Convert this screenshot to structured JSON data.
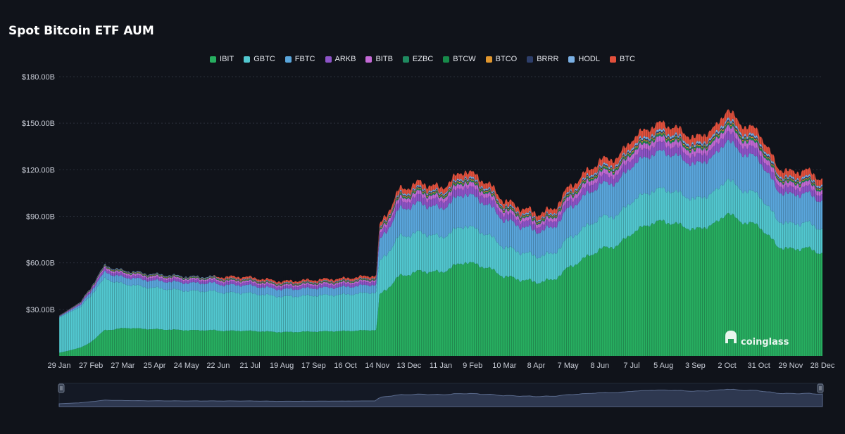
{
  "page": {
    "title": "Spot Bitcoin ETF AUM"
  },
  "watermark": "coinglass",
  "colors": {
    "background": "#10131a",
    "grid": "#2a2f3a",
    "axis_text": "#c8ccd6",
    "navigator_fill": "#2e3850",
    "navigator_line": "#5a6a8c"
  },
  "chart_data": {
    "type": "area",
    "stacked": true,
    "title": "Spot Bitcoin ETF AUM",
    "ylabel": "",
    "ylim": [
      0,
      180
    ],
    "y_unit": "billion USD",
    "yticks": [
      30,
      60,
      90,
      120,
      150,
      180
    ],
    "ytick_labels": [
      "$30.00B",
      "$60.00B",
      "$90.00B",
      "$120.00B",
      "$150.00B",
      "$180.00B"
    ],
    "grid": true,
    "legend_position": "top-center",
    "xtick_labels": [
      "29 Jan",
      "27 Feb",
      "27 Mar",
      "25 Apr",
      "24 May",
      "22 Jun",
      "21 Jul",
      "19 Aug",
      "17 Sep",
      "16 Oct",
      "14 Nov",
      "13 Dec",
      "11 Jan",
      "9 Feb",
      "10 Mar",
      "8 Apr",
      "7 May",
      "8 Jun",
      "7 Jul",
      "5 Aug",
      "3 Sep",
      "2 Oct",
      "31 Oct",
      "29 Nov",
      "28 Dec"
    ],
    "x_index": [
      0,
      29,
      58,
      87,
      116,
      145,
      174,
      203,
      232,
      261,
      290,
      319,
      348,
      377,
      406,
      435,
      464,
      493,
      522,
      551,
      580,
      609,
      638,
      667,
      696
    ],
    "total_key_points": [
      [
        0,
        26
      ],
      [
        20,
        35
      ],
      [
        35,
        51
      ],
      [
        42,
        59
      ],
      [
        50,
        56
      ],
      [
        80,
        53
      ],
      [
        120,
        51
      ],
      [
        170,
        51
      ],
      [
        203,
        48
      ],
      [
        230,
        49
      ],
      [
        261,
        50
      ],
      [
        289,
        52
      ],
      [
        292,
        83
      ],
      [
        310,
        107
      ],
      [
        330,
        112
      ],
      [
        348,
        108
      ],
      [
        370,
        120
      ],
      [
        390,
        112
      ],
      [
        406,
        100
      ],
      [
        420,
        96
      ],
      [
        435,
        92
      ],
      [
        450,
        94
      ],
      [
        464,
        108
      ],
      [
        480,
        118
      ],
      [
        493,
        126
      ],
      [
        510,
        128
      ],
      [
        522,
        140
      ],
      [
        540,
        148
      ],
      [
        551,
        150
      ],
      [
        565,
        146
      ],
      [
        580,
        140
      ],
      [
        600,
        148
      ],
      [
        609,
        160
      ],
      [
        620,
        150
      ],
      [
        638,
        145
      ],
      [
        655,
        122
      ],
      [
        667,
        118
      ],
      [
        680,
        120
      ],
      [
        696,
        114
      ]
    ],
    "series": [
      {
        "name": "IBIT",
        "color": "#27ae60",
        "share": [
          [
            0,
            0.08
          ],
          [
            25,
            0.18
          ],
          [
            40,
            0.28
          ],
          [
            60,
            0.32
          ],
          [
            289,
            0.33
          ],
          [
            292,
            0.46
          ],
          [
            310,
            0.47
          ],
          [
            360,
            0.48
          ],
          [
            460,
            0.5
          ],
          [
            540,
            0.58
          ],
          [
            696,
            0.59
          ]
        ]
      },
      {
        "name": "GBTC",
        "color": "#52c8d0",
        "share": [
          [
            0,
            0.88
          ],
          [
            25,
            0.72
          ],
          [
            40,
            0.58
          ],
          [
            60,
            0.5
          ],
          [
            289,
            0.48
          ],
          [
            292,
            0.25
          ],
          [
            360,
            0.19
          ],
          [
            460,
            0.17
          ],
          [
            540,
            0.14
          ],
          [
            696,
            0.14
          ]
        ]
      },
      {
        "name": "FBTC",
        "color": "#5aa6dc",
        "share": [
          [
            0,
            0.02
          ],
          [
            40,
            0.07
          ],
          [
            120,
            0.1
          ],
          [
            289,
            0.1
          ],
          [
            292,
            0.16
          ],
          [
            460,
            0.17
          ],
          [
            540,
            0.16
          ],
          [
            696,
            0.16
          ]
        ]
      },
      {
        "name": "ARKB",
        "color": "#8e54c8",
        "share": [
          [
            0,
            0.008
          ],
          [
            40,
            0.03
          ],
          [
            289,
            0.04
          ],
          [
            696,
            0.035
          ]
        ]
      },
      {
        "name": "BITB",
        "color": "#c46ad6",
        "share": [
          [
            0,
            0.005
          ],
          [
            40,
            0.02
          ],
          [
            696,
            0.025
          ]
        ]
      },
      {
        "name": "EZBC",
        "color": "#1f8a60",
        "share": [
          [
            0,
            0.002
          ],
          [
            40,
            0.005
          ],
          [
            696,
            0.006
          ]
        ]
      },
      {
        "name": "BTCW",
        "color": "#178a4a",
        "share": [
          [
            0,
            0.002
          ],
          [
            40,
            0.003
          ],
          [
            696,
            0.004
          ]
        ]
      },
      {
        "name": "BTCO",
        "color": "#e0962e",
        "share": [
          [
            0,
            0.004
          ],
          [
            40,
            0.005
          ],
          [
            696,
            0.005
          ]
        ]
      },
      {
        "name": "BRRR",
        "color": "#2d3e6a",
        "share": [
          [
            0,
            0.004
          ],
          [
            40,
            0.005
          ],
          [
            696,
            0.006
          ]
        ]
      },
      {
        "name": "HODL",
        "color": "#7ab0e4",
        "share": [
          [
            0,
            0.003
          ],
          [
            40,
            0.006
          ],
          [
            696,
            0.01
          ]
        ]
      },
      {
        "name": "BTC",
        "color": "#e2503c",
        "share": [
          [
            0,
            0.0
          ],
          [
            140,
            0.0
          ],
          [
            150,
            0.025
          ],
          [
            696,
            0.035
          ]
        ]
      }
    ]
  }
}
